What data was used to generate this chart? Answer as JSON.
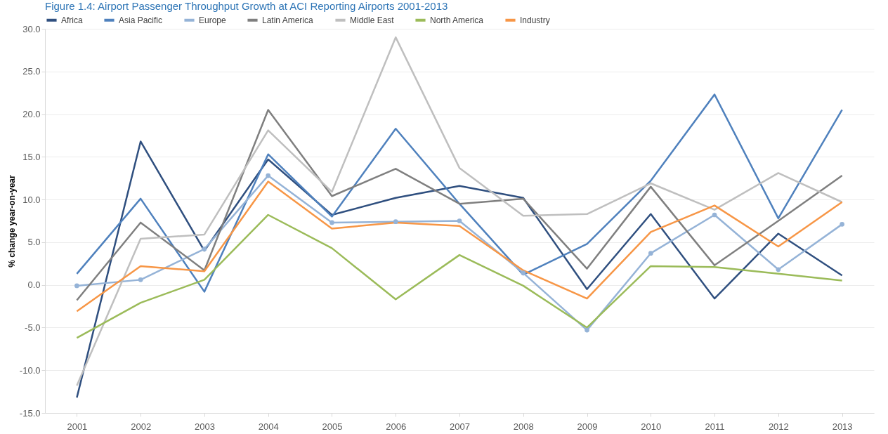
{
  "chart_data": {
    "type": "line",
    "title": "Figure 1.4:    Airport Passenger Throughput Growth at ACI Reporting Airports 2001-2013",
    "ylabel": "% change year-on-year",
    "categories": [
      "2001",
      "2002",
      "2003",
      "2004",
      "2005",
      "2006",
      "2007",
      "2008",
      "2009",
      "2010",
      "2011",
      "2012",
      "2013"
    ],
    "series": [
      {
        "name": "Africa",
        "color": "#2f4f7f",
        "values": [
          -13.2,
          16.8,
          4.0,
          14.7,
          8.2,
          10.2,
          11.6,
          10.2,
          -0.5,
          8.3,
          -1.6,
          6.0,
          1.1
        ]
      },
      {
        "name": "Asia Pacific",
        "color": "#4f81bd",
        "values": [
          1.3,
          10.1,
          -0.8,
          15.3,
          8.0,
          18.3,
          9.5,
          1.2,
          4.8,
          12.2,
          22.3,
          7.8,
          20.5
        ]
      },
      {
        "name": "Europe",
        "color": "#95b3d7",
        "marker": "circle",
        "values": [
          -0.1,
          0.6,
          4.2,
          12.8,
          7.3,
          7.4,
          7.5,
          1.4,
          -5.3,
          3.7,
          8.2,
          1.8,
          7.1
        ]
      },
      {
        "name": "Latin America",
        "color": "#7f7f7f",
        "values": [
          -1.8,
          7.3,
          1.7,
          20.5,
          10.4,
          13.6,
          9.5,
          10.1,
          1.9,
          11.5,
          2.3,
          7.5,
          12.8
        ]
      },
      {
        "name": "Middle East",
        "color": "#bfbfbf",
        "values": [
          -11.8,
          5.4,
          5.9,
          18.1,
          10.9,
          29.0,
          13.7,
          8.1,
          8.3,
          11.9,
          8.8,
          13.1,
          9.7
        ]
      },
      {
        "name": "North America",
        "color": "#9bbb59",
        "values": [
          -6.2,
          -2.1,
          0.6,
          8.2,
          4.3,
          -1.7,
          3.5,
          -0.1,
          -5.0,
          2.2,
          2.1,
          1.3,
          0.5
        ]
      },
      {
        "name": "Industry",
        "color": "#f79646",
        "values": [
          -3.1,
          2.2,
          1.6,
          12.1,
          6.6,
          7.3,
          6.9,
          1.7,
          -1.6,
          6.2,
          9.3,
          4.5,
          9.7
        ]
      }
    ],
    "ylim": [
      -15,
      30
    ],
    "yticks": [
      {
        "value": -15,
        "label": "-15.0"
      },
      {
        "value": -10,
        "label": "-10.0"
      },
      {
        "value": -5,
        "label": "-5.0"
      },
      {
        "value": 0,
        "label": "0.0"
      },
      {
        "value": 5,
        "label": "5.0"
      },
      {
        "value": 10,
        "label": "10.0"
      },
      {
        "value": 15,
        "label": "15.0"
      },
      {
        "value": 20,
        "label": "20.0"
      },
      {
        "value": 25,
        "label": "25.0"
      },
      {
        "value": 30,
        "label": "30.0"
      }
    ],
    "grid": "y",
    "legend": "top"
  }
}
